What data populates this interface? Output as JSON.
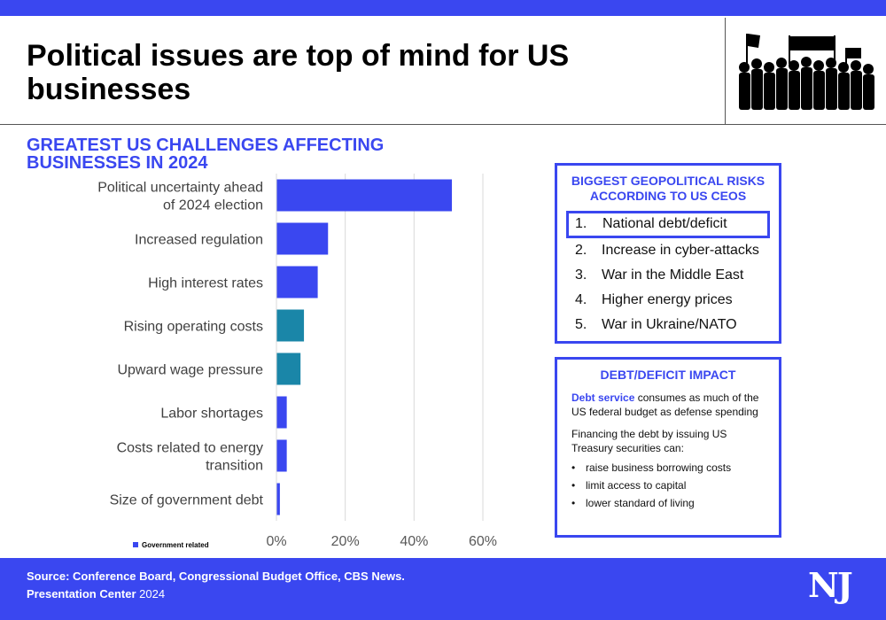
{
  "header": {
    "title": "Political issues are top of mind for US businesses",
    "image_icon": "protest-crowd-silhouette-icon"
  },
  "subtitle": "GREATEST US CHALLENGES AFFECTING BUSINESSES IN 2024",
  "chart_data": {
    "type": "bar",
    "orientation": "horizontal",
    "categories": [
      [
        "Political uncertainty ahead",
        "of 2024 election"
      ],
      [
        "Increased regulation"
      ],
      [
        "High interest rates"
      ],
      [
        "Rising operating costs"
      ],
      [
        "Upward wage pressure"
      ],
      [
        "Labor shortages"
      ],
      [
        "Costs related to energy",
        "transition"
      ],
      [
        "Size of government debt"
      ]
    ],
    "values": [
      51,
      15,
      12,
      8,
      7,
      3,
      3,
      1
    ],
    "government_related": [
      true,
      true,
      true,
      false,
      false,
      true,
      true,
      true
    ],
    "xlim": [
      0,
      60
    ],
    "xticks": [
      0,
      20,
      40,
      60
    ],
    "xtick_labels": [
      "0%",
      "20%",
      "40%",
      "60%"
    ],
    "grid": "vertical",
    "legend": {
      "label": "Government related",
      "placement": "bottom-left"
    },
    "colors": {
      "government": "#3a47f0",
      "other": "#1a86a8"
    }
  },
  "risks": {
    "title_line1": "BIGGEST GEOPOLITICAL RISKS",
    "title_line2": "ACCORDING TO US CEOS",
    "items": [
      {
        "num": "1.",
        "label": "National debt/deficit"
      },
      {
        "num": "2.",
        "label": "Increase in cyber-attacks"
      },
      {
        "num": "3.",
        "label": "War in the Middle East"
      },
      {
        "num": "4.",
        "label": "Higher energy prices"
      },
      {
        "num": "5.",
        "label": "War in Ukraine/NATO"
      }
    ]
  },
  "debt": {
    "title": "DEBT/DEFICIT IMPACT",
    "highlight": "Debt service",
    "p1_rest": " consumes as much of the US federal budget as defense spending",
    "p2": "Financing the debt by issuing US Treasury securities can:",
    "bullets": [
      "raise business borrowing costs",
      "limit access to capital",
      "lower standard of living"
    ]
  },
  "footer": {
    "source": "Source: Conference Board, Congressional Budget Office, CBS News.",
    "center_bold": "Presentation Center",
    "center_year": " 2024",
    "logo": "NJ"
  },
  "colors": {
    "accent": "#3a47f0"
  }
}
